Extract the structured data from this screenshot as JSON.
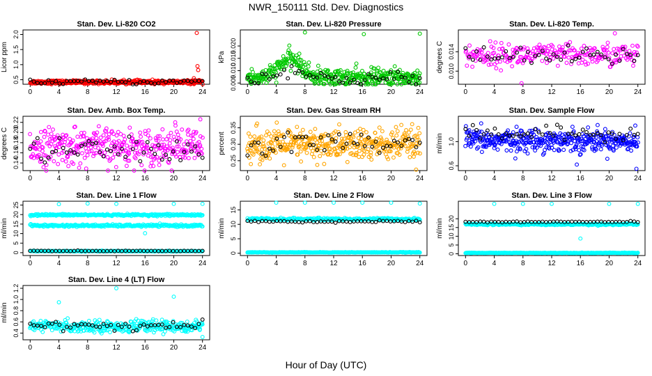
{
  "figure": {
    "title": "NWR_150111  Std. Dev. Diagnostics",
    "xlabel": "Hour of Day (UTC)"
  },
  "chart_data": [
    {
      "type": "scatter",
      "title": "Stan. Dev. Li-820 CO2",
      "ylabel": "Licor ppm",
      "xlim": [
        -1,
        25
      ],
      "ylim": [
        0.35,
        2.15
      ],
      "yticks": [
        0.5,
        1.0,
        1.5,
        2.0
      ],
      "xticks": [
        0,
        4,
        8,
        12,
        16,
        20,
        24
      ],
      "color": "#ff0000",
      "base": 0.42,
      "spread": 0.03,
      "black_base": 0.43,
      "black_spread": 0.04,
      "n": 420,
      "outliers": [
        [
          23.2,
          2.05
        ],
        [
          23.3,
          0.95
        ],
        [
          23.4,
          0.82
        ],
        [
          22.8,
          0.55
        ]
      ]
    },
    {
      "type": "scatter",
      "title": "Stan. Dev. Li-820 Pressure",
      "ylabel": "kPa",
      "xlim": [
        -1,
        25
      ],
      "ylim": [
        0.0045,
        0.0265
      ],
      "yticks": [
        0.005,
        0.01,
        0.015,
        0.02
      ],
      "xticks": [
        0,
        4,
        8,
        12,
        16,
        20,
        24
      ],
      "color": "#00c800",
      "base": 0.0072,
      "spread": 0.0018,
      "black_base": 0.0068,
      "black_spread": 0.0015,
      "n": 420,
      "bump": [
        6,
        1.5,
        0.0075
      ],
      "outliers": [
        [
          8,
          0.0255
        ],
        [
          16.2,
          0.0248
        ],
        [
          24,
          0.025
        ]
      ]
    },
    {
      "type": "scatter",
      "title": "Stan. Dev. Li-820 Temp.",
      "ylabel": "degrees C",
      "xlim": [
        -1,
        25
      ],
      "ylim": [
        0.0073,
        0.0185
      ],
      "yticks": [
        0.01,
        0.014
      ],
      "xticks": [
        0,
        4,
        8,
        12,
        16,
        20,
        24
      ],
      "color": "#ff00ff",
      "base": 0.0133,
      "spread": 0.0012,
      "black_base": 0.013,
      "black_spread": 0.001,
      "n": 260,
      "outliers": [
        [
          7.8,
          0.0075
        ],
        [
          20.8,
          0.0178
        ]
      ]
    },
    {
      "type": "scatter",
      "title": "Stan. Dev. Amb. Box Temp.",
      "ylabel": "degrees C",
      "xlim": [
        -1,
        25
      ],
      "ylim": [
        0.125,
        0.232
      ],
      "yticks": [
        0.14,
        0.16,
        0.18,
        0.2,
        0.22
      ],
      "xticks": [
        0,
        4,
        8,
        12,
        16,
        20,
        24
      ],
      "color": "#ff00ff",
      "base": 0.172,
      "spread": 0.018,
      "black_base": 0.165,
      "black_spread": 0.012,
      "n": 380,
      "outliers": [
        [
          23.7,
          0.226
        ],
        [
          20.2,
          0.22
        ]
      ]
    },
    {
      "type": "scatter",
      "title": "Stan. Dev. Gas Stream RH",
      "ylabel": "percent",
      "xlim": [
        -1,
        25
      ],
      "ylim": [
        0.22,
        0.385
      ],
      "yticks": [
        0.25,
        0.3,
        0.35
      ],
      "xticks": [
        0,
        4,
        8,
        12,
        16,
        20,
        24
      ],
      "color": "#ffa500",
      "base": 0.298,
      "spread": 0.025,
      "black_base": 0.298,
      "black_spread": 0.018,
      "n": 420,
      "outliers": []
    },
    {
      "type": "scatter",
      "title": "Stan. Dev. Sample Flow",
      "ylabel": "ml/min",
      "xlim": [
        -1,
        25
      ],
      "ylim": [
        0.52,
        1.42
      ],
      "yticks": [
        0.6,
        1.0
      ],
      "xticks": [
        0,
        4,
        8,
        12,
        16,
        20,
        24
      ],
      "color": "#0000ff",
      "base": 1.02,
      "spread": 0.09,
      "black_base": 1.13,
      "black_spread": 0.06,
      "n": 420,
      "outliers": [
        [
          23.8,
          0.55
        ],
        [
          15.5,
          0.62
        ]
      ]
    },
    {
      "type": "scatter",
      "title": "Stan. Dev. Line 1 Flow",
      "ylabel": "ml/min",
      "xlim": [
        -1,
        25
      ],
      "ylim": [
        -1.5,
        27
      ],
      "yticks": [
        0,
        5,
        10,
        15,
        20,
        25
      ],
      "xticks": [
        0,
        4,
        8,
        12,
        16,
        20,
        24
      ],
      "color": "#00ffff",
      "bands": [
        [
          19.8,
          0.5
        ],
        [
          14.2,
          0.6
        ],
        [
          0.8,
          0.2
        ]
      ],
      "black_band": [
        0.9,
        0.15
      ],
      "n": 260,
      "outliers": [
        [
          4,
          25.5
        ],
        [
          8,
          25.8
        ],
        [
          12,
          25.6
        ],
        [
          20,
          25.6
        ],
        [
          24,
          25.6
        ],
        [
          16,
          10.2
        ]
      ]
    },
    {
      "type": "scatter",
      "title": "Stan. Dev. Line 2 Flow",
      "ylabel": "ml/min",
      "xlim": [
        -1,
        25
      ],
      "ylim": [
        -0.8,
        18
      ],
      "yticks": [
        0,
        5,
        10,
        15
      ],
      "xticks": [
        0,
        4,
        8,
        12,
        16,
        20,
        24
      ],
      "color": "#00ffff",
      "bands": [
        [
          11.8,
          0.4
        ],
        [
          0.3,
          0.1
        ]
      ],
      "black_band": [
        11.0,
        0.3
      ],
      "n": 260,
      "outliers": [
        [
          4,
          17.5
        ],
        [
          8,
          17.5
        ],
        [
          12,
          17.5
        ],
        [
          16,
          17.5
        ],
        [
          20,
          17.5
        ],
        [
          24,
          17.2
        ]
      ]
    },
    {
      "type": "scatter",
      "title": "Stan. Dev. Line 3 Flow",
      "ylabel": "ml/min",
      "xlim": [
        -1,
        25
      ],
      "ylim": [
        -1,
        30
      ],
      "yticks": [
        0,
        5,
        10,
        15,
        20
      ],
      "xticks": [
        0,
        4,
        8,
        12,
        16,
        20,
        24
      ],
      "color": "#00ffff",
      "bands": [
        [
          16.8,
          0.5
        ],
        [
          0.5,
          0.15
        ]
      ],
      "black_band": [
        18.2,
        0.3
      ],
      "n": 260,
      "outliers": [
        [
          4,
          28.5
        ],
        [
          8,
          28.5
        ],
        [
          12,
          28.5
        ],
        [
          16,
          8.7
        ],
        [
          20,
          28.5
        ],
        [
          24,
          28.5
        ]
      ]
    },
    {
      "type": "scatter",
      "title": "Stan. Dev. Line 4 (LT) Flow",
      "ylabel": "ml/min",
      "xlim": [
        -1,
        25
      ],
      "ylim": [
        0.28,
        1.25
      ],
      "yticks": [
        0.4,
        0.6,
        0.8,
        1.0,
        1.2
      ],
      "xticks": [
        0,
        4,
        8,
        12,
        16,
        20,
        24
      ],
      "color": "#00ffff",
      "base": 0.52,
      "spread": 0.05,
      "black_base": 0.53,
      "black_spread": 0.04,
      "n": 360,
      "outliers": [
        [
          4,
          0.95
        ],
        [
          12,
          1.2
        ],
        [
          20,
          1.05
        ],
        [
          24,
          0.33
        ]
      ]
    }
  ]
}
